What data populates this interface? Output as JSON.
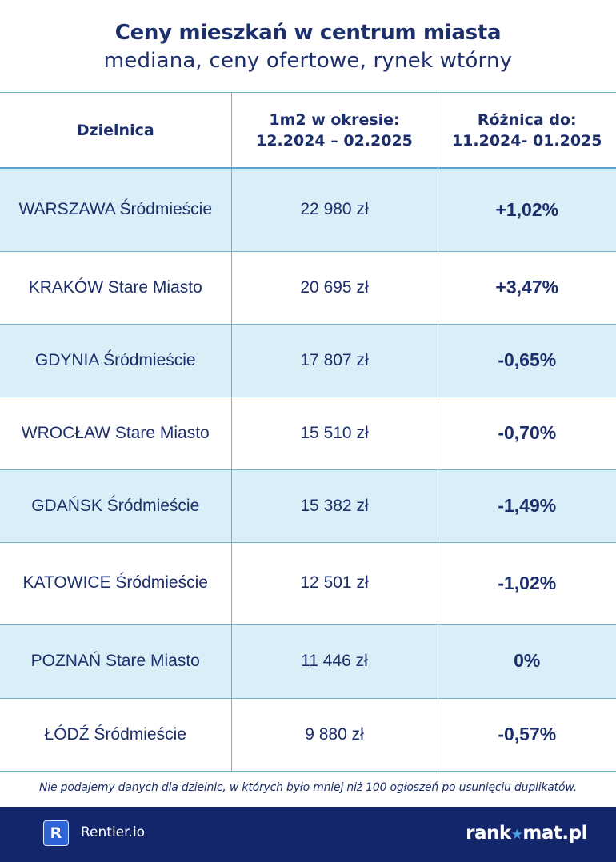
{
  "title": "Ceny mieszkań w centrum miasta",
  "subtitle": "mediana, ceny ofertowe, rynek wtórny",
  "chart_data": {
    "type": "table",
    "columns": [
      "Dzielnica",
      "1m2 w okresie:\n12.2024 – 02.2025",
      "Różnica do:\n11.2024- 01.2025"
    ],
    "rows": [
      {
        "district": "WARSZAWA Śródmieście",
        "price": "22 980 zł",
        "diff": "+1,02%"
      },
      {
        "district": "KRAKÓW Stare Miasto",
        "price": "20 695 zł",
        "diff": "+3,47%"
      },
      {
        "district": "GDYNIA Śródmieście",
        "price": "17 807 zł",
        "diff": "-0,65%"
      },
      {
        "district": "WROCŁAW Stare Miasto",
        "price": "15 510 zł",
        "diff": "-0,70%"
      },
      {
        "district": "GDAŃSK Śródmieście",
        "price": "15 382 zł",
        "diff": "-1,49%"
      },
      {
        "district": "KATOWICE Śródmieście",
        "price": "12 501 zł",
        "diff": "-1,02%"
      },
      {
        "district": "POZNAŃ Stare Miasto",
        "price": "11 446 zł",
        "diff": "0%"
      },
      {
        "district": "ŁÓDŹ Śródmieście",
        "price": "9 880 zł",
        "diff": "-0,57%"
      }
    ]
  },
  "note": "Nie podajemy danych dla dzielnic, w których było mniej niż 100 ogłoszeń po usunięciu duplikatów.",
  "footer": {
    "logo_letter": "R",
    "rentier_label": "Rentier.io",
    "rankomat_left": "rank",
    "rankomat_star": "★",
    "rankomat_right": "mat.pl"
  },
  "colors": {
    "navy": "#1c2e6b",
    "row_shade": "#d9eef7",
    "grid": "#6fb3cf",
    "footer_bg": "#13256b",
    "logo_blue": "#2e64d8"
  }
}
